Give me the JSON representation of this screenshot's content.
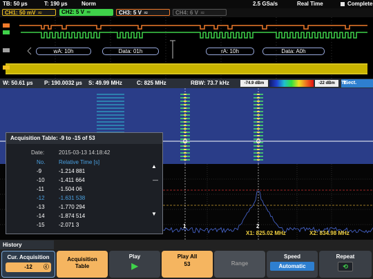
{
  "topbar": {
    "tb": "TB: 50 µs",
    "t": "T: 190 µs",
    "mode": "Norm",
    "rate": "2.5 GSa/s",
    "acq_mode": "Real Time",
    "status": "Complete"
  },
  "channels": [
    {
      "label": "CH1: 50 mV",
      "color": "#f0c020"
    },
    {
      "label": "CH2: 5 V",
      "color": "#3fd24a"
    },
    {
      "label": "CH3: 5 V",
      "color": "#f07a2a"
    },
    {
      "label": "CH4: 6 V",
      "color": "#9a9a9a"
    }
  ],
  "bus": {
    "seg1": "wA: 10h",
    "seg2": "Data: 01h",
    "seg3": "rA: 10h",
    "seg4": "Data: A0h"
  },
  "infobar": {
    "w": "W: 50.61 µs",
    "p": "P: 190.0032 µs",
    "s": "S: 49.99 MHz",
    "c": "C: 825 MHz",
    "rbw": "RBW: 73.7 kHz",
    "min": "-74.9 dBm",
    "max": "-22 dBm",
    "tsect": "T.Sect."
  },
  "acq_table": {
    "title": "Acquisition Table: -9 to -15 of 53",
    "date_label": "Date:",
    "date_value": "2015-03-13 14:18:42",
    "col_no": "No.",
    "col_time": "Relative Time [s]",
    "rows": [
      {
        "no": "-9",
        "time": "-1.214 881"
      },
      {
        "no": "-10",
        "time": "-1.411 664"
      },
      {
        "no": "-11",
        "time": "-1.504 06"
      },
      {
        "no": "-12",
        "time": "-1.631 538"
      },
      {
        "no": "-13",
        "time": "-1.770 294"
      },
      {
        "no": "-14",
        "time": "-1.874 514"
      },
      {
        "no": "-15",
        "time": "-2.071 3"
      }
    ]
  },
  "markers": {
    "x1": "X1: 825.02 MHz",
    "x2": "X2: 834.98 MHz",
    "m1": "1",
    "m2": "2"
  },
  "softkeys": {
    "history": "History",
    "cur_acq_label": "Cur. Acquisition",
    "cur_acq_value": "-12",
    "acq_table_label": "Acquisition\nTable",
    "play_label": "Play",
    "play_all_label": "Play All",
    "play_all_value": "53",
    "range_label": "Range",
    "speed_label": "Speed",
    "speed_value": "Automatic",
    "repeat_label": "Repeat"
  }
}
